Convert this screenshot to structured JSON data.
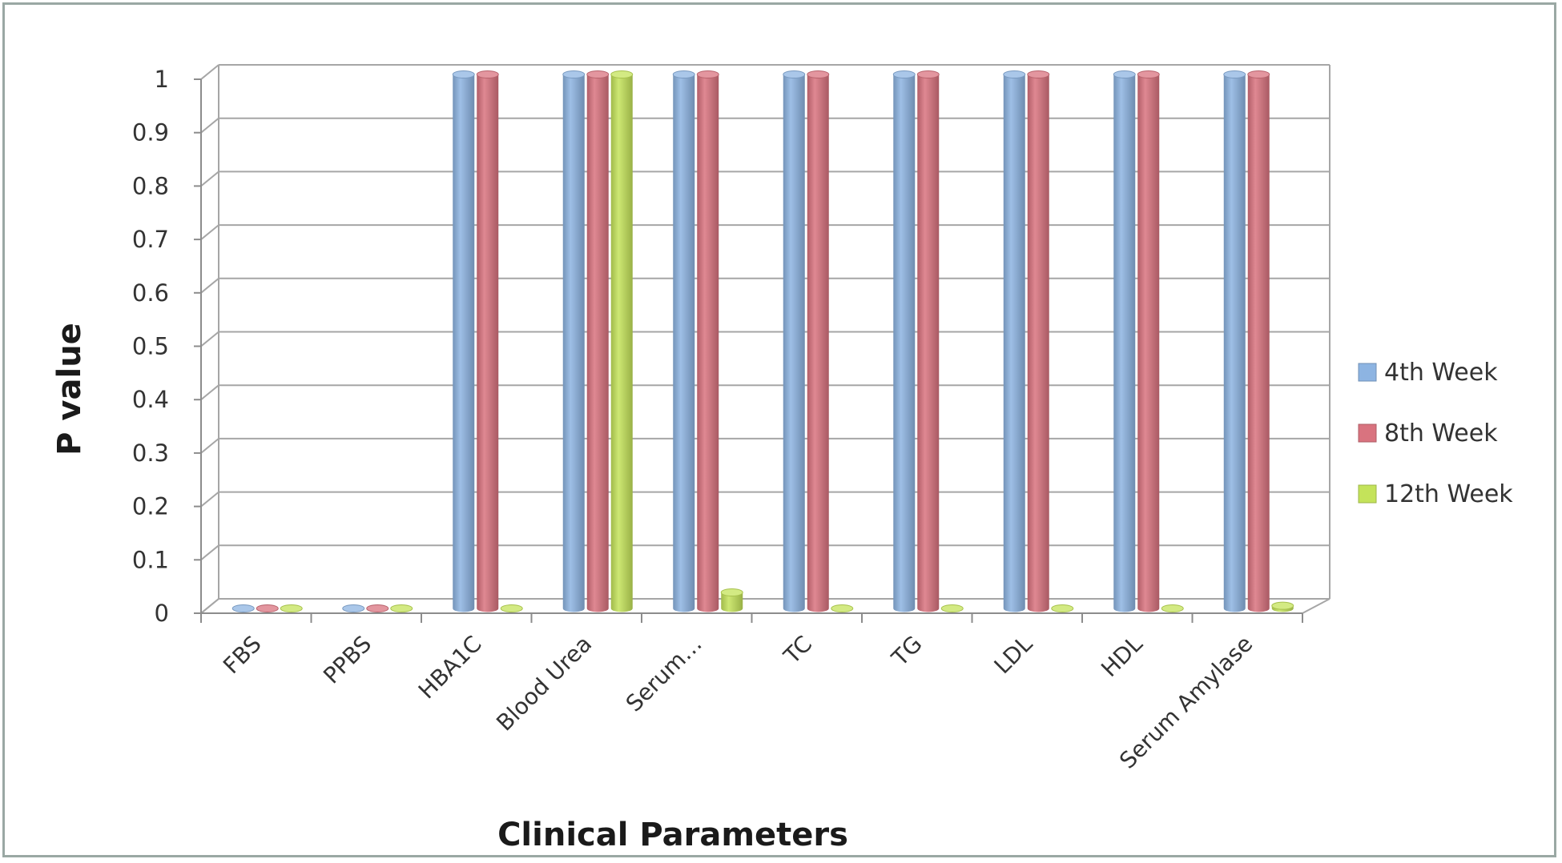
{
  "chart_data": {
    "type": "bar",
    "title": "",
    "xlabel": "Clinical Parameters",
    "ylabel": "P value",
    "ylim": [
      0,
      1
    ],
    "yticks": [
      "0",
      "0.1",
      "0.2",
      "0.3",
      "0.4",
      "0.5",
      "0.6",
      "0.7",
      "0.8",
      "0.9",
      "1"
    ],
    "grid": true,
    "legend_position": "right",
    "categories": [
      "FBS",
      "PPBS",
      "HBA1C",
      "Blood Urea",
      "Serum…",
      "TC",
      "TG",
      "LDL",
      "HDL",
      "Serum Amylase"
    ],
    "series": [
      {
        "name": "4th Week",
        "color": "#8db4e2",
        "values": [
          0,
          0,
          1,
          1,
          1,
          1,
          1,
          1,
          1,
          1
        ]
      },
      {
        "name": "8th Week",
        "color": "#d9737f",
        "values": [
          0,
          0,
          1,
          1,
          1,
          1,
          1,
          1,
          1,
          1
        ]
      },
      {
        "name": "12th Week",
        "color": "#c4e35a",
        "values": [
          0,
          0,
          0,
          1,
          0.03,
          0,
          0,
          0,
          0,
          0.005
        ]
      }
    ]
  }
}
